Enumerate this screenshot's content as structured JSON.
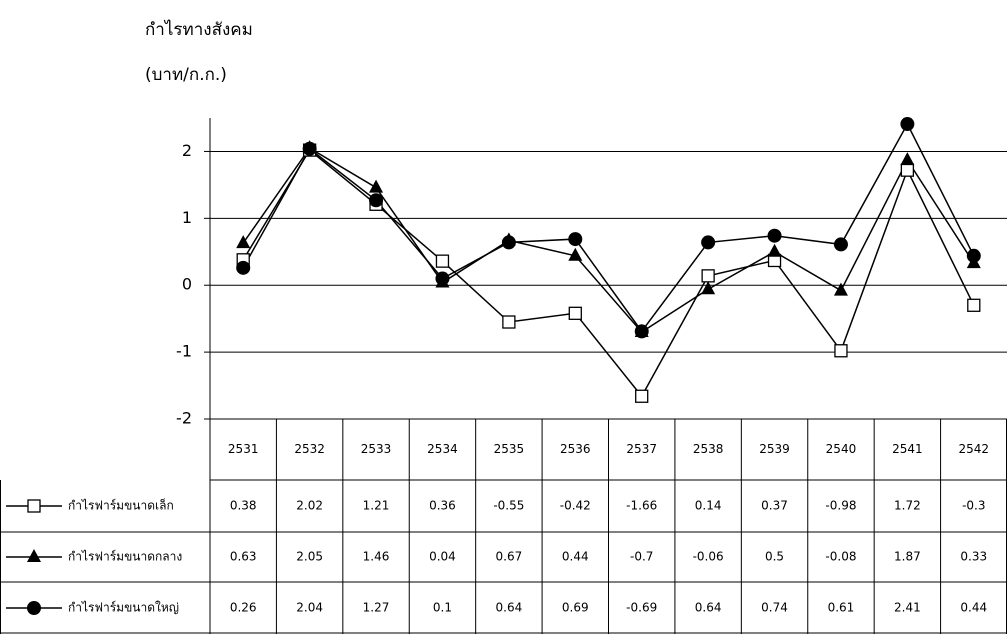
{
  "chart_data": {
    "type": "line",
    "title": "กำไรทางสังคม",
    "subtitle": "(บาท/ก.ก.)",
    "categories": [
      "2531",
      "2532",
      "2533",
      "2534",
      "2535",
      "2536",
      "2537",
      "2538",
      "2539",
      "2540",
      "2541",
      "2542"
    ],
    "series": [
      {
        "name": "กำไรฟาร์มขนาดเล็ก",
        "color": "#000000",
        "marker": "square",
        "values": [
          0.38,
          2.02,
          1.21,
          0.36,
          -0.55,
          -0.42,
          -1.66,
          0.14,
          0.37,
          -0.98,
          1.72,
          -0.3
        ]
      },
      {
        "name": "กำไรฟาร์มขนาดกลาง",
        "color": "#000000",
        "marker": "triangle",
        "values": [
          0.63,
          2.05,
          1.46,
          0.04,
          0.67,
          0.44,
          -0.7,
          -0.06,
          0.5,
          -0.08,
          1.87,
          0.33
        ]
      },
      {
        "name": "กำไรฟาร์มขนาดใหญ่",
        "color": "#000000",
        "marker": "circle",
        "values": [
          0.26,
          2.04,
          1.27,
          0.1,
          0.64,
          0.69,
          -0.69,
          0.64,
          0.74,
          0.61,
          2.41,
          0.44
        ]
      }
    ],
    "ylim": [
      -2,
      2.5
    ],
    "yticks": [
      -2,
      -1,
      0,
      1,
      2
    ],
    "grid": true
  }
}
